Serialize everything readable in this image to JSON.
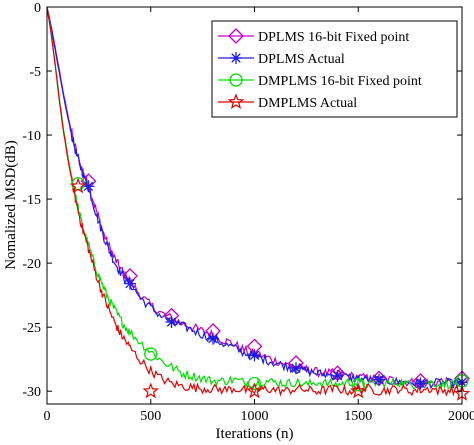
{
  "chart_data": {
    "type": "line",
    "xlabel": "Iterations (n)",
    "ylabel": "Nomalized MSD(dB)",
    "xlim": [
      0,
      2000
    ],
    "ylim": [
      -31,
      0
    ],
    "xticks": [
      0,
      500,
      1000,
      1500,
      2000
    ],
    "yticks": [
      0,
      -5,
      -10,
      -15,
      -20,
      -25,
      -30
    ],
    "legend_position": "top-right",
    "grid": false,
    "series": [
      {
        "name": "DPLMS 16-bit Fixed point",
        "color": "#c000c0",
        "marker": "diamond",
        "x": [
          0,
          20,
          40,
          60,
          80,
          100,
          120,
          140,
          160,
          180,
          200,
          225,
          250,
          275,
          300,
          325,
          350,
          375,
          400,
          450,
          500,
          550,
          600,
          650,
          700,
          750,
          800,
          850,
          900,
          950,
          1000,
          1050,
          1100,
          1150,
          1200,
          1250,
          1300,
          1350,
          1400,
          1450,
          1500,
          1550,
          1600,
          1650,
          1700,
          1750,
          1800,
          1850,
          1900,
          1950,
          2000
        ],
        "y": [
          0,
          -1.5,
          -3.2,
          -5,
          -6.8,
          -8.4,
          -9.9,
          -11.2,
          -12.3,
          -13.1,
          -13.9,
          -15.2,
          -16.5,
          -17.8,
          -18.7,
          -19.6,
          -20.3,
          -20.9,
          -21.4,
          -22.5,
          -23.3,
          -23.9,
          -24.3,
          -24.7,
          -25,
          -25.3,
          -25.6,
          -26,
          -26.3,
          -26.8,
          -27.1,
          -27.3,
          -27.6,
          -27.9,
          -28.1,
          -28.3,
          -28.5,
          -28.6,
          -28.6,
          -28.8,
          -28.9,
          -29,
          -29.1,
          -29.1,
          -29.2,
          -29.3,
          -29.3,
          -29.4,
          -29.2,
          -29.4,
          -29.3
        ],
        "marker_x": [
          200,
          400,
          600,
          800,
          1000,
          1200,
          1400,
          1600,
          1800,
          2000
        ],
        "marker_y": [
          -13.6,
          -21.0,
          -24.1,
          -25.3,
          -26.5,
          -27.8,
          -28.6,
          -29.0,
          -29.2,
          -29.0
        ]
      },
      {
        "name": "DPLMS Actual",
        "color": "#1a1ae6",
        "marker": "asterisk",
        "x": [
          0,
          20,
          40,
          60,
          80,
          100,
          120,
          140,
          160,
          180,
          200,
          225,
          250,
          275,
          300,
          325,
          350,
          375,
          400,
          450,
          500,
          550,
          600,
          650,
          700,
          750,
          800,
          850,
          900,
          950,
          1000,
          1050,
          1100,
          1150,
          1200,
          1250,
          1300,
          1350,
          1400,
          1450,
          1500,
          1550,
          1600,
          1650,
          1700,
          1750,
          1800,
          1850,
          1900,
          1950,
          2000
        ],
        "y": [
          0,
          -1.6,
          -3.4,
          -5.2,
          -7,
          -8.6,
          -10.1,
          -11.4,
          -12.4,
          -13.3,
          -14.1,
          -15.5,
          -16.8,
          -18,
          -19,
          -19.9,
          -20.6,
          -21.2,
          -21.6,
          -22.7,
          -23.5,
          -24.1,
          -24.6,
          -24.9,
          -25.2,
          -25.6,
          -25.9,
          -26.3,
          -26.6,
          -27,
          -27.3,
          -27.5,
          -27.8,
          -28,
          -28.3,
          -28.4,
          -28.6,
          -28.7,
          -28.8,
          -28.9,
          -29,
          -29.1,
          -29.1,
          -29.2,
          -29.3,
          -29.3,
          -29.4,
          -29.4,
          -29.3,
          -29.4,
          -29.4
        ],
        "marker_x": [
          200,
          400,
          600,
          800,
          1000,
          1200,
          1400,
          1600,
          1800,
          2000
        ],
        "marker_y": [
          -14.0,
          -21.6,
          -24.6,
          -25.9,
          -27.2,
          -28.2,
          -28.8,
          -29.1,
          -29.4,
          -29.3
        ]
      },
      {
        "name": "DMPLMS 16-bit Fixed point",
        "color": "#00dd00",
        "marker": "circle",
        "x": [
          0,
          20,
          40,
          60,
          80,
          100,
          120,
          140,
          160,
          180,
          200,
          225,
          250,
          275,
          300,
          325,
          350,
          375,
          400,
          450,
          500,
          550,
          600,
          650,
          700,
          750,
          800,
          850,
          900,
          950,
          1000,
          1050,
          1100,
          1150,
          1200,
          1250,
          1300,
          1350,
          1400,
          1450,
          1500,
          1550,
          1600,
          1650,
          1700,
          1750,
          1800,
          1850,
          1900,
          1950,
          2000
        ],
        "y": [
          0,
          -2,
          -4.5,
          -7.2,
          -9.6,
          -11.6,
          -13.4,
          -15,
          -16.4,
          -17.6,
          -18.6,
          -19.9,
          -21,
          -22,
          -22.9,
          -23.6,
          -24.3,
          -24.9,
          -25.4,
          -26.2,
          -26.9,
          -27.6,
          -28.1,
          -28.6,
          -28.8,
          -29,
          -29.2,
          -29.2,
          -29.1,
          -29.3,
          -29.4,
          -29.2,
          -29.3,
          -29.4,
          -29.3,
          -29.5,
          -29.3,
          -29.4,
          -29.5,
          -29.3,
          -29.4,
          -29.5,
          -29.3,
          -29.4,
          -29.3,
          -29.5,
          -29.4,
          -29.3,
          -29.5,
          -29.4,
          -29.3
        ],
        "marker_x": [
          150,
          500,
          1000,
          1500,
          2000
        ],
        "marker_y": [
          -13.8,
          -27.1,
          -29.4,
          -29.5,
          -29.2
        ]
      },
      {
        "name": "DMPLMS Actual",
        "color": "#e00000",
        "marker": "star",
        "x": [
          0,
          20,
          40,
          60,
          80,
          100,
          120,
          140,
          160,
          180,
          200,
          225,
          250,
          275,
          300,
          325,
          350,
          375,
          400,
          450,
          500,
          550,
          600,
          650,
          700,
          750,
          800,
          850,
          900,
          950,
          1000,
          1050,
          1100,
          1150,
          1200,
          1250,
          1300,
          1350,
          1400,
          1450,
          1500,
          1550,
          1600,
          1650,
          1700,
          1750,
          1800,
          1850,
          1900,
          1950,
          2000
        ],
        "y": [
          0,
          -2.1,
          -4.6,
          -7.4,
          -9.8,
          -11.8,
          -13.6,
          -15.2,
          -16.6,
          -17.8,
          -18.9,
          -20.3,
          -21.6,
          -22.7,
          -23.7,
          -24.6,
          -25.4,
          -26,
          -26.6,
          -27.6,
          -28.4,
          -29,
          -29.4,
          -29.6,
          -29.7,
          -29.8,
          -29.8,
          -29.9,
          -29.8,
          -29.9,
          -30,
          -29.8,
          -29.9,
          -30,
          -29.8,
          -29.9,
          -30,
          -29.9,
          -29.8,
          -30,
          -29.9,
          -29.8,
          -30,
          -29.9,
          -29.8,
          -30,
          -29.9,
          -29.8,
          -30,
          -29.9,
          -29.9
        ],
        "marker_x": [
          150,
          500,
          1000,
          1500,
          2000
        ],
        "marker_y": [
          -14.0,
          -30.0,
          -30.0,
          -30.0,
          -30.2
        ]
      }
    ]
  }
}
